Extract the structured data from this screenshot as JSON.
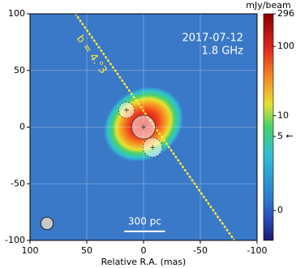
{
  "chart_data": {
    "type": "image",
    "xlabel": "Relative R.A. (mas)",
    "xlim": [
      100,
      -100
    ],
    "ylim": [
      -100,
      100
    ],
    "xticks": [
      100,
      50,
      0,
      -50,
      -100
    ],
    "yticks": [
      -100,
      -50,
      0,
      50,
      100
    ],
    "grid": true,
    "annotations": [
      {
        "text": "2017-07-12"
      },
      {
        "text": "1.8 GHz"
      }
    ],
    "components": [
      {
        "x": 15,
        "y": 15,
        "size": 14,
        "style": "dashed"
      },
      {
        "x": 0,
        "y": 0,
        "size": 21,
        "style": "solid"
      },
      {
        "x": -8,
        "y": -18,
        "size": 17,
        "style": "dashed"
      }
    ],
    "beam": {
      "x": 85,
      "y": -85,
      "size": 11,
      "color": "#c8c8c8"
    },
    "line": {
      "x": [
        60,
        -80
      ],
      "y": [
        100,
        -100
      ],
      "label": "b = 4.°3",
      "color": "#ffe83a"
    },
    "scalebar": {
      "x": [
        17,
        -19
      ],
      "y": -92,
      "label": "300 pc"
    },
    "colorbar": {
      "label": "mJy/beam",
      "lim": [
        -1,
        296
      ],
      "scale": "asinh",
      "linear_width": 0.86,
      "ticks": [
        0,
        {
          "value": 5,
          "label": "5 ←"
        },
        10,
        100,
        296
      ]
    }
  }
}
